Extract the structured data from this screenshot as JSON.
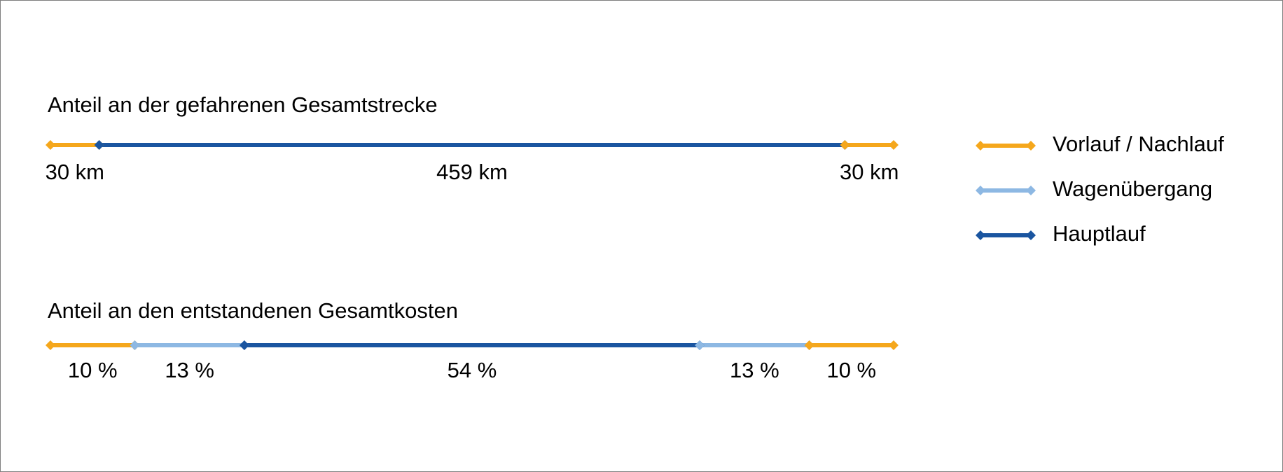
{
  "chart_data": [
    {
      "type": "segmented-line",
      "title": "Anteil an der gefahrenen Gesamtstrecke",
      "values": [
        30,
        459,
        30
      ],
      "value_labels": [
        "30 km",
        "459 km",
        "30 km"
      ],
      "colors": [
        "#f5a71c",
        "#1a55a0",
        "#f5a71c"
      ]
    },
    {
      "type": "segmented-line",
      "title": "Anteil an den entstandenen Gesamtkosten",
      "values": [
        10,
        13,
        54,
        13,
        10
      ],
      "value_labels": [
        "10 %",
        "13 %",
        "54 %",
        "13 %",
        "10 %"
      ],
      "colors": [
        "#f5a71c",
        "#8db8e3",
        "#1a55a0",
        "#8db8e3",
        "#f5a71c"
      ]
    }
  ],
  "legend": {
    "series": [
      {
        "name": "Vorlauf / Nachlauf",
        "color": "#f5a71c"
      },
      {
        "name": "Wagenübergang",
        "color": "#8db8e3"
      },
      {
        "name": "Hauptlauf",
        "color": "#1a55a0"
      }
    ]
  }
}
